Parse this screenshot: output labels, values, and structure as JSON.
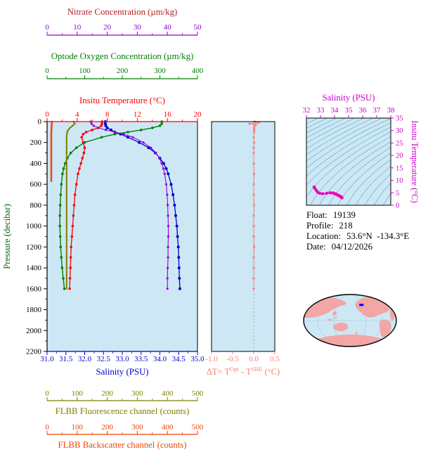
{
  "meta": {
    "background": "#ffffff",
    "panel_bg": "#cde7f5"
  },
  "float_info": {
    "float_label": "Float:",
    "float_value": "19139",
    "profile_label": "Profile:",
    "profile_value": "218",
    "location_label": "Location:",
    "location_value": "53.6°N  -134.3°E",
    "date_label": "Date:",
    "date_value": "04/12/2026"
  },
  "chart_data": [
    {
      "id": "main_profile",
      "type": "line",
      "y_axis": {
        "label": "Pressure (decibar)",
        "label_color": "#006400",
        "lim": [
          0,
          2200
        ],
        "ticks": [
          "0",
          "200",
          "400",
          "600",
          "800",
          "1000",
          "1200",
          "1400",
          "1600",
          "1800",
          "2000",
          "2200"
        ]
      },
      "x_axes": [
        {
          "id": "nitrate",
          "title": "Nitrate Concentration (µm/kg)",
          "title_color": "#b22222",
          "color": "#9400d3",
          "lim": [
            0,
            50
          ],
          "ticks": [
            "0",
            "10",
            "20",
            "30",
            "40",
            "50"
          ],
          "minor_step": 5,
          "slot": "top-3"
        },
        {
          "id": "oxygen",
          "title": "Optode Oxygen Concentration (µm/kg)",
          "title_color": "#008000",
          "color": "#008000",
          "lim": [
            0,
            400
          ],
          "ticks": [
            "0",
            "100",
            "200",
            "300",
            "400"
          ],
          "minor_step": 50,
          "slot": "top-2"
        },
        {
          "id": "temperature",
          "title": "Insitu Temperature (°C)",
          "title_color": "#ff0000",
          "color": "#ff0000",
          "lim": [
            0,
            20
          ],
          "ticks": [
            "0",
            "4",
            "8",
            "12",
            "16",
            "20"
          ],
          "minor_step": 2,
          "slot": "top-1"
        },
        {
          "id": "salinity",
          "title": "Salinity (PSU)",
          "title_color": "#0000cd",
          "color": "#0000cd",
          "lim": [
            31,
            35
          ],
          "ticks": [
            "31.0",
            "31.5",
            "32.0",
            "32.5",
            "33.0",
            "33.5",
            "34.0",
            "34.5",
            "35.0"
          ],
          "minor_step": 0.25,
          "slot": "bottom-1"
        },
        {
          "id": "fluorescence",
          "title": "FLBB Fluorescence channel (counts)",
          "title_color": "#808000",
          "color": "#808000",
          "lim": [
            0,
            500
          ],
          "ticks": [
            "0",
            "100",
            "200",
            "300",
            "400",
            "500"
          ],
          "minor_step": 50,
          "slot": "bottom-2"
        },
        {
          "id": "backscatter",
          "title": "FLBB Backscatter channel (counts)",
          "title_color": "#ee4400",
          "color": "#ee4400",
          "lim": [
            0,
            500
          ],
          "ticks": [
            "0",
            "100",
            "200",
            "300",
            "400",
            "500"
          ],
          "minor_step": 50,
          "slot": "bottom-3"
        }
      ],
      "series": [
        {
          "id": "salinity",
          "axis": "salinity",
          "color": "#0000cd",
          "marker": 2.0,
          "line_width": 1.3,
          "pressure": [
            0,
            20,
            40,
            60,
            80,
            100,
            120,
            150,
            200,
            250,
            300,
            350,
            400,
            450,
            500,
            600,
            700,
            800,
            900,
            1000,
            1100,
            1200,
            1300,
            1400,
            1500,
            1600
          ],
          "values": [
            32.55,
            32.55,
            32.56,
            32.6,
            32.7,
            32.8,
            32.95,
            33.15,
            33.45,
            33.7,
            33.88,
            34.0,
            34.1,
            34.17,
            34.22,
            34.3,
            34.35,
            34.39,
            34.42,
            34.45,
            34.47,
            34.49,
            34.5,
            34.51,
            34.52,
            34.53
          ]
        },
        {
          "id": "temperature",
          "axis": "temperature",
          "color": "#ff0000",
          "marker": 1.8,
          "line_width": 1.3,
          "pressure": [
            0,
            20,
            40,
            60,
            80,
            100,
            120,
            150,
            200,
            250,
            300,
            350,
            400,
            450,
            500,
            600,
            700,
            800,
            900,
            1000,
            1100,
            1200,
            1300,
            1400,
            1500,
            1600
          ],
          "values": [
            7.3,
            7.3,
            7.2,
            6.8,
            6.0,
            5.2,
            4.8,
            4.6,
            4.8,
            5.0,
            4.9,
            4.7,
            4.5,
            4.3,
            4.1,
            3.9,
            3.7,
            3.6,
            3.5,
            3.4,
            3.3,
            3.2,
            3.15,
            3.1,
            3.05,
            3.0
          ]
        },
        {
          "id": "oxygen",
          "axis": "oxygen",
          "color": "#008000",
          "marker": 1.8,
          "line_width": 1.4,
          "pressure": [
            0,
            20,
            40,
            60,
            80,
            100,
            120,
            150,
            200,
            250,
            300,
            350,
            400,
            450,
            500,
            600,
            700,
            800,
            900,
            1000,
            1100,
            1200,
            1300,
            1400,
            1500,
            1600
          ],
          "values": [
            305,
            305,
            300,
            280,
            250,
            215,
            180,
            145,
            100,
            78,
            63,
            54,
            48,
            44,
            41,
            38,
            36,
            35,
            34,
            34,
            35,
            36,
            38,
            40,
            43,
            46
          ]
        },
        {
          "id": "nitrate",
          "axis": "nitrate",
          "color": "#9400d3",
          "marker": 1.6,
          "line_width": 1.1,
          "pressure": [
            0,
            20,
            40,
            60,
            80,
            100,
            120,
            150,
            200,
            250,
            300,
            350,
            400,
            450,
            500,
            600,
            700,
            800,
            900,
            1000,
            1100,
            1200,
            1300,
            1400,
            1500,
            1600
          ],
          "values": [
            14.5,
            14.8,
            15.5,
            17.0,
            19.5,
            22.5,
            25.5,
            28.5,
            32.0,
            34.5,
            36.2,
            37.3,
            38.1,
            38.7,
            39.1,
            39.6,
            39.9,
            40.1,
            40.2,
            40.3,
            40.3,
            40.2,
            40.2,
            40.1,
            40.0,
            40.0
          ]
        },
        {
          "id": "fluorescence",
          "axis": "fluorescence",
          "color": "#808000",
          "marker": 1.2,
          "line_width": 2.0,
          "pressure": [
            0,
            20,
            40,
            60,
            80,
            100,
            120,
            150,
            200,
            250,
            300,
            350,
            400,
            450,
            500,
            600,
            700,
            800,
            900,
            1000,
            1100,
            1200,
            1300,
            1400,
            1500,
            1600
          ],
          "values": [
            88,
            92,
            85,
            76,
            70,
            67,
            66,
            65,
            65,
            65,
            65,
            65,
            65,
            65,
            65,
            65,
            65,
            65,
            65,
            65,
            65,
            65,
            65,
            65,
            65,
            65
          ]
        },
        {
          "id": "backscatter",
          "axis": "backscatter",
          "color": "#ee4400",
          "marker": 1.2,
          "line_width": 2.4,
          "pressure": [
            0,
            50,
            100,
            150,
            200,
            250,
            300,
            350,
            400,
            450,
            500,
            550,
            570
          ],
          "values": [
            16,
            15,
            14,
            14,
            14,
            14,
            14,
            14,
            14,
            14,
            14,
            14,
            14
          ]
        }
      ]
    },
    {
      "id": "delta_t",
      "type": "line",
      "color": "#fa8072",
      "x_axis": {
        "lim": [
          -1.0,
          0.5
        ],
        "ticks": [
          "-1.0",
          "-0.5",
          "0.0",
          "0.5"
        ]
      },
      "title_parts": {
        "prefix": "ΔT= T",
        "sup1": "Opt",
        "mid": " - T",
        "sup2": "SBE",
        "suffix": " (°C)"
      },
      "zero_line_color": "#999999",
      "pressure": [
        0,
        10,
        20,
        30,
        40,
        60,
        80,
        100,
        150,
        200,
        250,
        300,
        400,
        500,
        600,
        700,
        800,
        900,
        1000,
        1100,
        1200,
        1300,
        1400,
        1500,
        1600
      ],
      "values": [
        0.02,
        0.12,
        -0.1,
        0.05,
        0.02,
        0.01,
        0.01,
        0.01,
        0.0,
        0.01,
        0.0,
        0.0,
        0.0,
        0.01,
        0.0,
        0.0,
        0.01,
        0.0,
        0.0,
        0.0,
        0.01,
        0.0,
        0.0,
        0.0,
        0.0
      ]
    },
    {
      "id": "ts_diagram",
      "type": "scatter",
      "title": "Salinity (PSU)",
      "axis_color": "#cc00cc",
      "curve_color": "#ee00bb",
      "x_axis": {
        "lim": [
          32,
          38
        ],
        "ticks": [
          "32",
          "33",
          "34",
          "35",
          "36",
          "37",
          "38"
        ]
      },
      "y_axis": {
        "label": "Insitu Temperature (°C)",
        "lim": [
          0,
          35
        ],
        "ticks": [
          "0",
          "5",
          "10",
          "15",
          "20",
          "25",
          "30",
          "35"
        ]
      },
      "isopycnals": {
        "color": "#52aabf",
        "sigma_min": 20,
        "sigma_max": 30,
        "step": 0.5
      },
      "salinity": [
        32.55,
        32.55,
        32.56,
        32.6,
        32.7,
        32.8,
        32.95,
        33.15,
        33.45,
        33.7,
        33.88,
        34.0,
        34.1,
        34.17,
        34.22,
        34.3,
        34.35,
        34.39,
        34.42,
        34.45,
        34.47,
        34.49,
        34.5,
        34.51,
        34.52,
        34.53
      ],
      "temperature": [
        7.3,
        7.3,
        7.2,
        6.8,
        6.0,
        5.2,
        4.8,
        4.6,
        4.8,
        5.0,
        4.9,
        4.7,
        4.5,
        4.3,
        4.1,
        3.9,
        3.7,
        3.6,
        3.5,
        3.4,
        3.3,
        3.2,
        3.15,
        3.1,
        3.05,
        3.0
      ]
    },
    {
      "id": "world_map",
      "type": "map",
      "ocean_color": "#cde7f5",
      "land_color": "#f2a6a6",
      "outline_color": "#000000",
      "marker": {
        "color": "#0000ee",
        "x_frac": 0.64,
        "y_frac": 0.2
      }
    }
  ]
}
